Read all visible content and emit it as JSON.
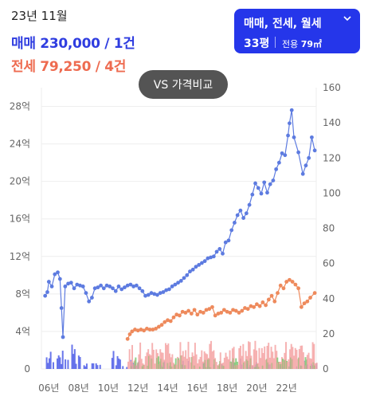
{
  "header": {
    "date": "23년 11월",
    "sale_line": "매매 230,000 / 1건",
    "lease_line": "전세 79,250 / 4건"
  },
  "filter_button": {
    "types": "매매, 전세, 월세",
    "chevron": "chevron-down-icon",
    "size": "33평",
    "area_label": "전용",
    "area_value": "79㎡"
  },
  "compare_button": {
    "label": "VS 가격비교"
  },
  "colors": {
    "sale": "#5d7be0",
    "lease": "#ee8a5c",
    "sale_volume": "#4f5ee8",
    "lease_volume": "#f4a0a0",
    "monthly_volume": "#7cc873",
    "accent": "#2536ea",
    "grid": "#eeeeee",
    "tick": "#666666"
  },
  "chart_data": {
    "type": "line",
    "x_ticks": [
      "06년",
      "08년",
      "10년",
      "12년",
      "14년",
      "16년",
      "18년",
      "20년",
      "22년"
    ],
    "x_tick_years": [
      2006,
      2008,
      2010,
      2012,
      2014,
      2016,
      2018,
      2020,
      2022
    ],
    "x_range": [
      2005.5,
      2024.0
    ],
    "y_left_ticks": [
      "0",
      "4억",
      "8억",
      "12억",
      "16억",
      "20억",
      "24억",
      "28억"
    ],
    "y_left_values": [
      0,
      4,
      8,
      12,
      16,
      20,
      24,
      28
    ],
    "y_left_range": [
      0,
      30
    ],
    "y_right_ticks": [
      "0",
      "20",
      "40",
      "60",
      "80",
      "100",
      "120",
      "140",
      "160"
    ],
    "y_right_values": [
      0,
      20,
      40,
      60,
      80,
      100,
      120,
      140,
      160
    ],
    "y_right_range": [
      0,
      160
    ],
    "grid": "horizontal",
    "series": [
      {
        "axis": "left",
        "x": [
          2005.75,
          2005.9,
          2006.0,
          2006.2,
          2006.4,
          2006.6,
          2006.75,
          2006.85,
          2006.95,
          2007.1,
          2007.3,
          2007.5,
          2007.7,
          2007.9,
          2008.1,
          2008.3,
          2008.5,
          2008.7,
          2008.9,
          2009.1,
          2009.3,
          2009.5,
          2009.7,
          2009.9,
          2010.1,
          2010.3,
          2010.5,
          2010.7,
          2010.9,
          2011.1,
          2011.3,
          2011.5,
          2011.7,
          2011.9,
          2012.1,
          2012.3,
          2012.5,
          2012.7,
          2012.9,
          2013.1,
          2013.3,
          2013.5,
          2013.7,
          2013.9,
          2014.1,
          2014.3,
          2014.5,
          2014.7,
          2014.9,
          2015.1,
          2015.3,
          2015.5,
          2015.7,
          2015.9,
          2016.1,
          2016.3,
          2016.5,
          2016.7,
          2016.9,
          2017.1,
          2017.3,
          2017.5,
          2017.7,
          2017.9,
          2018.1,
          2018.3,
          2018.5,
          2018.7,
          2018.9,
          2019.1,
          2019.3,
          2019.5,
          2019.7,
          2019.9,
          2020.1,
          2020.3,
          2020.5,
          2020.7,
          2020.9,
          2021.1,
          2021.3,
          2021.5,
          2021.7,
          2021.9,
          2022.1,
          2022.2,
          2022.35,
          2022.5,
          2022.8,
          2023.1,
          2023.3,
          2023.5,
          2023.7,
          2023.9
        ],
        "y": [
          7.8,
          8.2,
          9.3,
          8.8,
          10.1,
          10.3,
          9.6,
          6.5,
          3.4,
          8.8,
          9.1,
          9.2,
          8.6,
          9.0,
          8.9,
          8.8,
          8.1,
          7.2,
          7.6,
          8.6,
          8.7,
          8.9,
          8.6,
          8.9,
          8.8,
          8.6,
          8.3,
          8.8,
          8.5,
          8.7,
          8.9,
          9.0,
          8.8,
          8.9,
          8.6,
          8.3,
          7.8,
          7.9,
          8.1,
          8.0,
          7.9,
          8.1,
          8.2,
          8.4,
          8.5,
          8.8,
          9.0,
          9.2,
          9.4,
          9.7,
          10.0,
          10.4,
          10.6,
          10.9,
          11.1,
          11.3,
          11.5,
          11.8,
          11.9,
          12.0,
          12.5,
          12.8,
          12.3,
          13.5,
          13.7,
          14.8,
          15.6,
          16.4,
          16.9,
          16.1,
          16.6,
          17.5,
          18.6,
          19.8,
          19.3,
          18.7,
          19.9,
          18.8,
          19.7,
          20.1,
          21.3,
          22.0,
          23.0,
          22.8,
          24.9,
          26.2,
          27.6,
          24.7,
          23.1,
          20.8,
          21.7,
          22.5,
          24.7,
          23.3
        ]
      },
      {
        "axis": "left",
        "x": [
          2011.3,
          2011.45,
          2011.6,
          2011.8,
          2012.0,
          2012.2,
          2012.4,
          2012.6,
          2012.8,
          2013.0,
          2013.2,
          2013.4,
          2013.6,
          2013.8,
          2014.0,
          2014.2,
          2014.4,
          2014.6,
          2014.8,
          2015.0,
          2015.2,
          2015.4,
          2015.6,
          2015.8,
          2016.0,
          2016.2,
          2016.4,
          2016.6,
          2016.8,
          2017.0,
          2017.2,
          2017.4,
          2017.6,
          2017.8,
          2018.0,
          2018.2,
          2018.4,
          2018.6,
          2018.8,
          2019.0,
          2019.2,
          2019.4,
          2019.6,
          2019.8,
          2020.0,
          2020.2,
          2020.4,
          2020.6,
          2020.8,
          2021.0,
          2021.2,
          2021.4,
          2021.6,
          2021.8,
          2022.0,
          2022.2,
          2022.4,
          2022.6,
          2022.8,
          2023.0,
          2023.2,
          2023.4,
          2023.6,
          2023.9
        ],
        "y": [
          3.2,
          3.7,
          4.0,
          4.2,
          4.1,
          4.2,
          4.1,
          4.3,
          4.2,
          4.2,
          4.3,
          4.5,
          4.7,
          5.0,
          5.2,
          5.1,
          5.5,
          5.8,
          5.7,
          6.1,
          6.0,
          6.2,
          5.9,
          6.3,
          5.8,
          6.1,
          6.0,
          6.3,
          6.4,
          6.6,
          5.7,
          5.9,
          6.0,
          6.3,
          6.1,
          6.0,
          6.3,
          6.2,
          6.0,
          6.2,
          6.5,
          6.4,
          6.7,
          6.6,
          6.9,
          6.7,
          7.1,
          6.8,
          7.4,
          7.8,
          7.2,
          8.1,
          8.9,
          8.6,
          9.3,
          9.5,
          9.3,
          9.0,
          8.6,
          6.6,
          7.0,
          7.2,
          7.6,
          8.1
        ]
      }
    ]
  }
}
